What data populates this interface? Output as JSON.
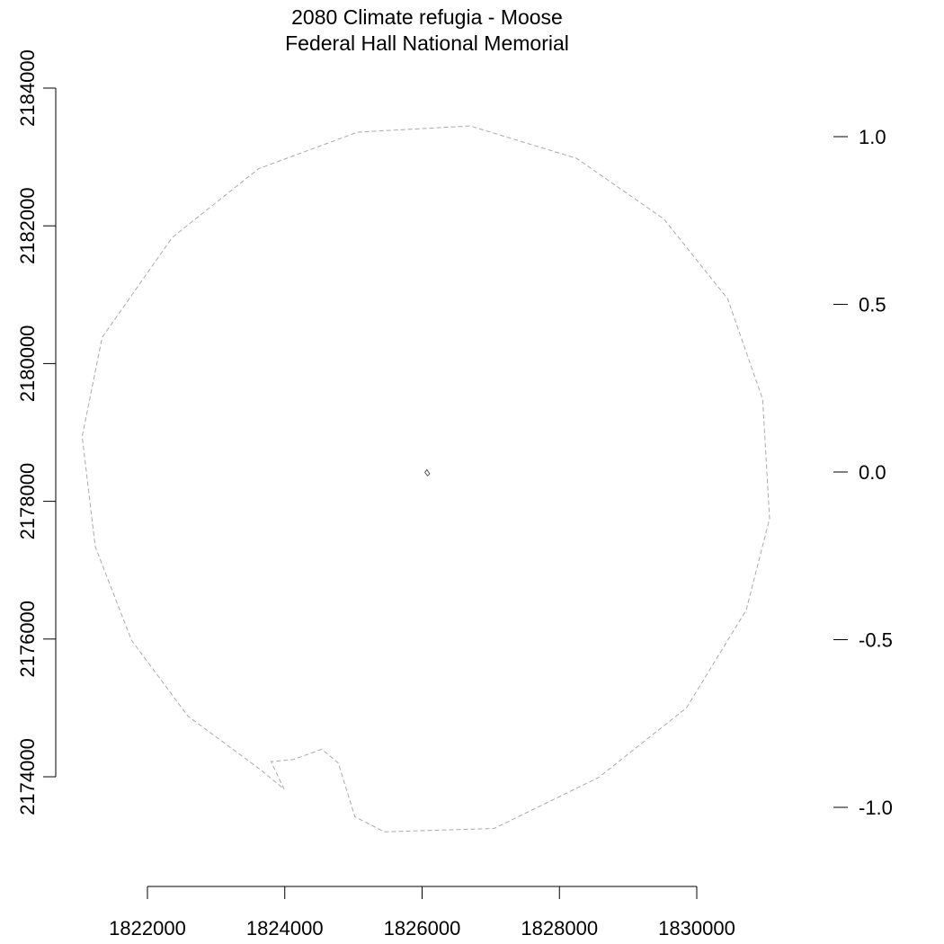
{
  "chart_data": {
    "type": "map",
    "title": "2080 Climate refugia - Moose",
    "subtitle": "Federal Hall National Memorial",
    "xlabel": "",
    "ylabel": "",
    "x_ticks": [
      1822000,
      1824000,
      1826000,
      1828000,
      1830000
    ],
    "y_ticks": [
      2174000,
      2176000,
      2178000,
      2180000,
      2182000,
      2184000
    ],
    "legend_ticks": [
      1.0,
      0.5,
      0.0,
      -0.5,
      -1.0
    ],
    "legend_tick_labels": [
      "1.0",
      "0.5",
      "0.0",
      "-0.5",
      "-1.0"
    ],
    "legend_placement": "right",
    "grid": false,
    "layers": [
      {
        "name": "",
        "style": "dashed",
        "color": "#aaaaaa",
        "points": [
          [
            1825060,
            2183360
          ],
          [
            1826700,
            2183450
          ],
          [
            1828250,
            2182980
          ],
          [
            1829520,
            2182100
          ],
          [
            1830450,
            2180940
          ],
          [
            1830960,
            2179480
          ],
          [
            1831060,
            2177750
          ],
          [
            1830720,
            2176420
          ],
          [
            1829850,
            2175000
          ],
          [
            1828570,
            2173990
          ],
          [
            1827050,
            2173250
          ],
          [
            1825450,
            2173200
          ],
          [
            1825020,
            2173420
          ],
          [
            1824780,
            2174200
          ],
          [
            1824540,
            2174400
          ],
          [
            1824120,
            2174250
          ],
          [
            1823800,
            2174220
          ],
          [
            1823990,
            2173820
          ],
          [
            1823650,
            2174100
          ],
          [
            1822590,
            2174880
          ],
          [
            1821770,
            2175980
          ],
          [
            1821240,
            2177340
          ],
          [
            1821050,
            2178940
          ],
          [
            1821340,
            2180380
          ],
          [
            1822360,
            2181830
          ],
          [
            1823620,
            2182830
          ]
        ]
      },
      {
        "name": "",
        "style": "solid",
        "color": "#555555",
        "points": [
          [
            1826040,
            2178420
          ],
          [
            1826070,
            2178460
          ],
          [
            1826110,
            2178400
          ],
          [
            1826080,
            2178370
          ]
        ]
      }
    ]
  }
}
